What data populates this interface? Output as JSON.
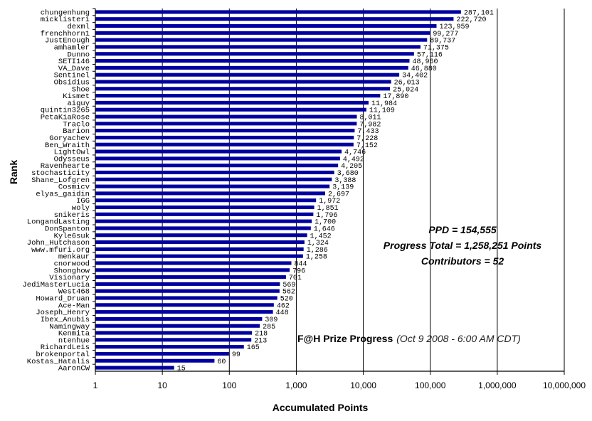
{
  "chart_data": {
    "type": "bar",
    "orientation": "horizontal",
    "scale": "log",
    "xlabel": "Accumulated Points",
    "ylabel": "Rank",
    "xlim": [
      1,
      10000000
    ],
    "x_ticks": [
      "1",
      "10",
      "100",
      "1,000",
      "10,000",
      "100,000",
      "1,000,000",
      "10,000,000"
    ],
    "grid": "vertical gridlines at each decade",
    "bar_color": "#0000A0",
    "categories": [
      "chungenhung",
      "micklisteri",
      "dexml",
      "frenchhorn1",
      "JustEnough",
      "amhamler",
      "Dunno",
      "SETI146",
      "VA_Dave",
      "Sentinel",
      "Obsidius",
      "Shoe",
      "Kismet",
      "aiguy",
      "quintin3265",
      "PetaKiaRose",
      "Traclo",
      "Barion",
      "Goryachev",
      "Ben_Wraith",
      "LightOwl",
      "Odysseus",
      "Ravenhearte",
      "stochasticity",
      "Shane_Lofgren",
      "Cosmicv",
      "elyas_gaidin",
      "IGG",
      "woly",
      "snikeris",
      "LongandLasting",
      "DonSpanton",
      "Kyle6suk",
      "John_Hutchason",
      "www.mfuri.org",
      "menkaur",
      "cnorwood",
      "Shonghow",
      "Visionary",
      "JediMasterLucia",
      "West468",
      "Howard_Druan",
      "Ace-Man",
      "Joseph_Henry",
      "Ibex_Anubis",
      "Namingway",
      "Kenmita",
      "ntenhue",
      "RichardLeis",
      "brokenportal",
      "Kostas_Hatalis",
      "AaronCW"
    ],
    "values": [
      287101,
      222720,
      123959,
      99277,
      89737,
      71375,
      57116,
      48960,
      46880,
      34402,
      26013,
      25024,
      17890,
      11984,
      11109,
      8011,
      7982,
      7433,
      7228,
      7152,
      4746,
      4492,
      4205,
      3680,
      3388,
      3139,
      2697,
      1972,
      1851,
      1796,
      1700,
      1646,
      1452,
      1324,
      1286,
      1258,
      844,
      796,
      701,
      569,
      562,
      520,
      462,
      448,
      309,
      285,
      218,
      213,
      165,
      99,
      60,
      15
    ],
    "value_labels": [
      "287,101",
      "222,720",
      "123,959",
      "99,277",
      "89,737",
      "71,375",
      "57,116",
      "48,960",
      "46,880",
      "34,402",
      "26,013",
      "25,024",
      "17,890",
      "11,984",
      "11,109",
      "8,011",
      "7,982",
      "7,433",
      "7,228",
      "7,152",
      "4,746",
      "4,492",
      "4,205",
      "3,680",
      "3,388",
      "3,139",
      "2,697",
      "1,972",
      "1,851",
      "1,796",
      "1,700",
      "1,646",
      "1,452",
      "1,324",
      "1,286",
      "1,258",
      "844",
      "796",
      "701",
      "569",
      "562",
      "520",
      "462",
      "448",
      "309",
      "285",
      "218",
      "213",
      "165",
      "99",
      "60",
      "15"
    ],
    "annotations": {
      "ppd": "PPD = 154,555",
      "progress_total": "Progress Total = 1,258,251 Points",
      "contributors": "Contributors = 52",
      "caption_main": "F@H Prize Progress",
      "caption_sub": "(Oct 9 2008 - 6:00 AM CDT)"
    }
  }
}
